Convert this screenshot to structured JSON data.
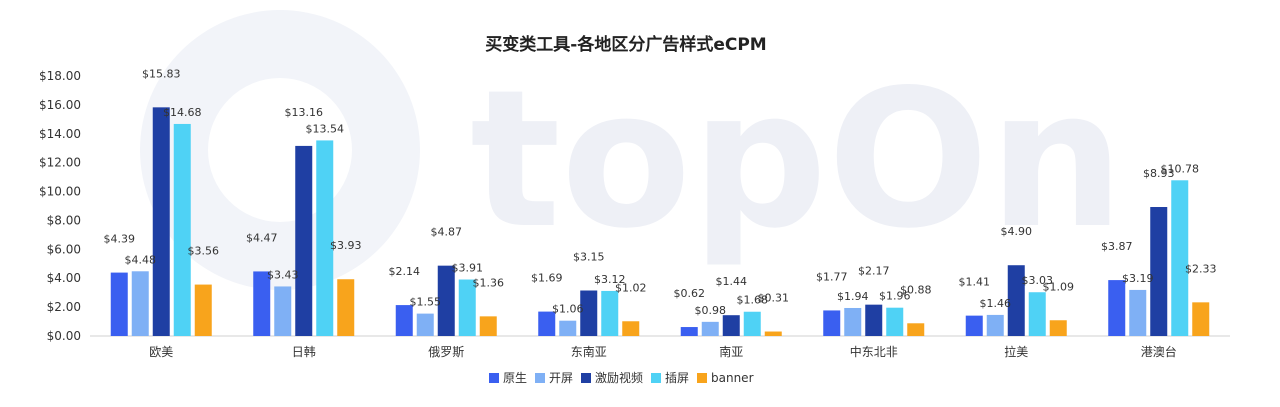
{
  "chart_data": {
    "type": "bar",
    "title": "买变类工具-各地区分广告样式eCPM",
    "watermark": "topOn",
    "categories": [
      "欧美",
      "日韩",
      "俄罗斯",
      "东南亚",
      "南亚",
      "中东北非",
      "拉美",
      "港澳台"
    ],
    "ylim": [
      0,
      18
    ],
    "yticks": [
      0,
      2,
      4,
      6,
      8,
      10,
      12,
      14,
      16,
      18
    ],
    "ytick_labels": [
      "$0.00",
      "$2.00",
      "$4.00",
      "$6.00",
      "$8.00",
      "$10.00",
      "$12.00",
      "$14.00",
      "$16.00",
      "$18.00"
    ],
    "legend_position": "bottom",
    "grid": false,
    "series": [
      {
        "name": "原生",
        "color": "#3a5ff0",
        "values": [
          4.39,
          4.47,
          2.14,
          1.69,
          0.62,
          1.77,
          1.41,
          3.87
        ],
        "labels": [
          "$4.39",
          "$4.47",
          "$2.14",
          "$1.69",
          "$0.62",
          "$1.77",
          "$1.41",
          "$3.87"
        ]
      },
      {
        "name": "开屏",
        "color": "#7fb0f5",
        "values": [
          4.48,
          3.43,
          1.55,
          1.06,
          0.98,
          1.94,
          1.46,
          3.19
        ],
        "labels": [
          "$4.48",
          "$3.43",
          "$1.55",
          "$1.06",
          "$0.98",
          "$1.94",
          "$1.46",
          "$3.19"
        ]
      },
      {
        "name": "激励视频",
        "color": "#1f3fa3",
        "values": [
          15.83,
          13.16,
          4.87,
          3.15,
          1.44,
          2.17,
          4.9,
          8.93
        ],
        "labels": [
          "$15.83",
          "$13.16",
          "$4.87",
          "$3.15",
          "$1.44",
          "$2.17",
          "$4.90",
          "$8.93"
        ]
      },
      {
        "name": "插屏",
        "color": "#4fd2f5",
        "values": [
          14.68,
          13.54,
          3.91,
          3.12,
          1.68,
          1.96,
          3.03,
          10.78
        ],
        "labels": [
          "$14.68",
          "$13.54",
          "$3.91",
          "$3.12",
          "$1.68",
          "$1.96",
          "$3.03",
          "$10.78"
        ]
      },
      {
        "name": "banner",
        "color": "#f8a41c",
        "values": [
          3.56,
          3.93,
          1.36,
          1.02,
          0.31,
          0.88,
          1.09,
          2.33
        ],
        "labels": [
          "$3.56",
          "$3.93",
          "$1.36",
          "$1.02",
          "$0.31",
          "$0.88",
          "$1.09",
          "$2.33"
        ]
      }
    ]
  }
}
